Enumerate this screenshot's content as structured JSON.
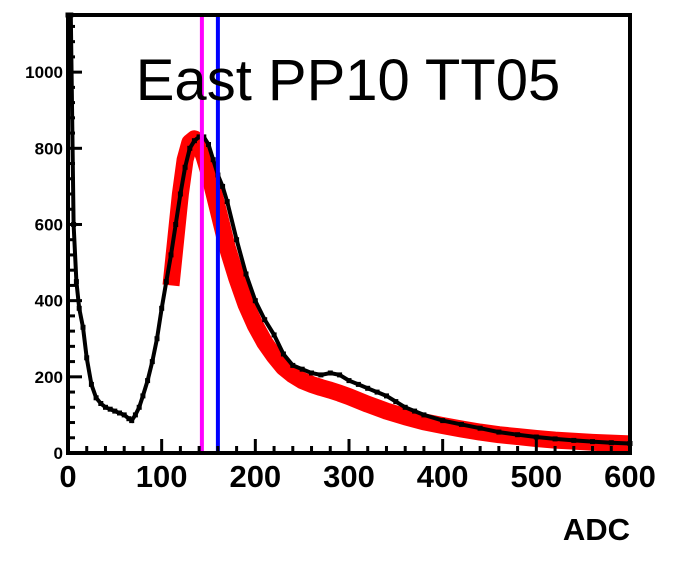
{
  "chart_data": {
    "type": "line",
    "title": "East PP10 TT05",
    "xlabel": "ADC",
    "ylabel": "",
    "xlim": [
      0,
      600
    ],
    "ylim": [
      0,
      1150
    ],
    "x_ticks": [
      0,
      100,
      200,
      300,
      400,
      500,
      600
    ],
    "y_ticks": [
      0,
      200,
      400,
      600,
      800,
      1000
    ],
    "grid": false,
    "colors": {
      "histogram": "#000000",
      "fit": "#ff0000",
      "marker_1": "#ff00ff",
      "marker_2": "#0000ff"
    },
    "series": [
      {
        "kind": "histogram",
        "x": [
          0,
          3,
          6,
          9,
          12,
          16,
          20,
          25,
          30,
          35,
          40,
          45,
          50,
          55,
          60,
          65,
          68,
          72,
          76,
          80,
          85,
          90,
          95,
          100,
          105,
          110,
          115,
          120,
          125,
          130,
          135,
          140,
          145,
          150,
          155,
          160,
          165,
          170,
          180,
          190,
          200,
          210,
          220,
          230,
          240,
          250,
          260,
          270,
          280,
          290,
          300,
          310,
          320,
          330,
          340,
          350,
          360,
          370,
          380,
          400,
          420,
          440,
          460,
          480,
          500,
          520,
          540,
          560,
          580,
          600
        ],
        "y": [
          1150,
          1150,
          600,
          450,
          380,
          330,
          250,
          180,
          145,
          130,
          120,
          115,
          110,
          105,
          100,
          90,
          85,
          100,
          120,
          150,
          190,
          240,
          300,
          380,
          450,
          520,
          600,
          680,
          750,
          800,
          820,
          830,
          830,
          810,
          770,
          730,
          700,
          660,
          560,
          470,
          400,
          350,
          310,
          260,
          230,
          220,
          210,
          205,
          210,
          205,
          190,
          180,
          170,
          160,
          150,
          135,
          120,
          110,
          100,
          85,
          75,
          65,
          55,
          48,
          42,
          37,
          33,
          30,
          27,
          25
        ]
      },
      {
        "kind": "fit",
        "x": [
          110,
          115,
          120,
          125,
          130,
          135,
          140,
          145,
          150,
          155,
          160,
          165,
          170,
          180,
          190,
          200,
          210,
          220,
          230,
          240,
          250,
          260,
          270,
          280,
          290,
          300,
          320,
          340,
          360,
          380,
          400,
          420,
          440,
          460,
          480,
          500,
          520,
          540,
          560,
          580,
          600
        ],
        "y": [
          440,
          560,
          680,
          770,
          815,
          825,
          810,
          780,
          740,
          690,
          640,
          590,
          540,
          460,
          390,
          335,
          290,
          255,
          225,
          205,
          190,
          180,
          172,
          165,
          157,
          148,
          128,
          110,
          95,
          82,
          72,
          63,
          55,
          48,
          43,
          38,
          34,
          31,
          28,
          26,
          24
        ]
      },
      {
        "kind": "vline",
        "x": 143
      },
      {
        "kind": "vline",
        "x": 160
      }
    ]
  }
}
